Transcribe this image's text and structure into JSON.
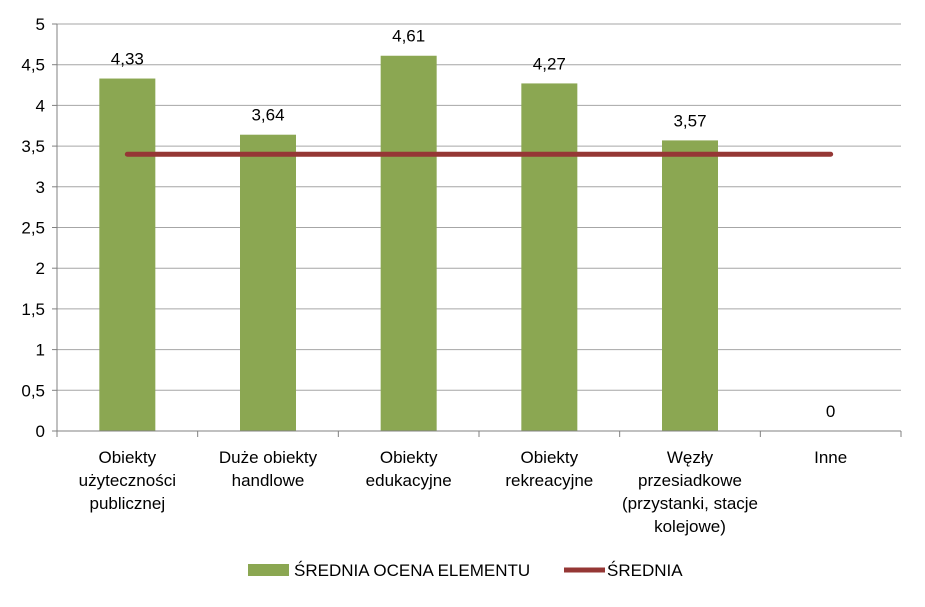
{
  "chart_data": {
    "type": "bar",
    "categories": [
      [
        "Obiekty",
        "użyteczności",
        "publicznej"
      ],
      [
        "Duże obiekty",
        "handlowe"
      ],
      [
        "Obiekty",
        "edukacyjne"
      ],
      [
        "Obiekty",
        "rekreacyjne"
      ],
      [
        "Węzły",
        "przesiadkowe",
        "(przystanki, stacje",
        "kolejowe)"
      ],
      [
        "Inne"
      ]
    ],
    "series": [
      {
        "name": "ŚREDNIA OCENA ELEMENTU",
        "type": "bar",
        "color": "#8ba752",
        "values": [
          4.33,
          3.64,
          4.61,
          4.27,
          3.57,
          0
        ],
        "data_labels": [
          "4,33",
          "3,64",
          "4,61",
          "4,27",
          "3,57",
          "0"
        ]
      },
      {
        "name": "ŚREDNIA",
        "type": "line",
        "color": "#953735",
        "values": [
          3.4,
          3.4,
          3.4,
          3.4,
          3.4,
          3.4
        ]
      }
    ],
    "ylim": [
      0,
      5
    ],
    "yticks": [
      0,
      0.5,
      1,
      1.5,
      2,
      2.5,
      3,
      3.5,
      4,
      4.5,
      5
    ],
    "ytick_labels": [
      "0",
      "0,5",
      "1",
      "1,5",
      "2",
      "2,5",
      "3",
      "3,5",
      "4",
      "4,5",
      "5"
    ],
    "grid": true,
    "legend": "bottom",
    "gridline_color": "#a6a6a6"
  }
}
